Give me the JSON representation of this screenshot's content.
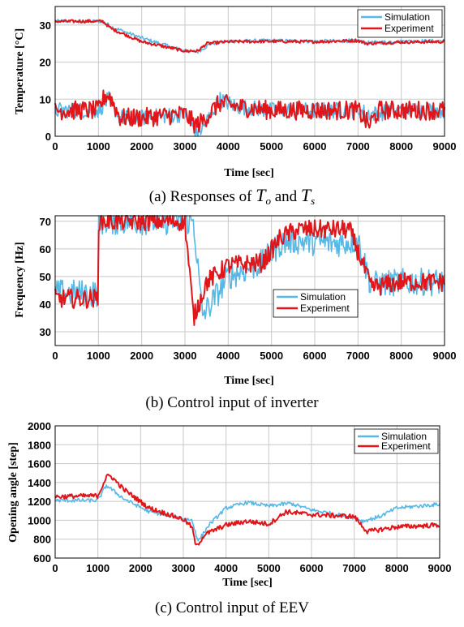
{
  "colors": {
    "simulation": "#55b8e6",
    "experiment": "#e0161b"
  },
  "chart_data": [
    {
      "type": "line",
      "xlabel": "Time  [sec]",
      "ylabel": "Temperature [°C]",
      "caption_prefix": "(a)  Responses  of  ",
      "caption_var1": "T",
      "caption_sub1": "o",
      "caption_mid": "  and  ",
      "caption_var2": "T",
      "caption_sub2": "s",
      "xlim": [
        0,
        9000
      ],
      "ylim": [
        0,
        35
      ],
      "xticks": [
        0,
        1000,
        2000,
        3000,
        4000,
        5000,
        6000,
        7000,
        8000,
        9000
      ],
      "yticks": [
        0,
        10,
        20,
        30
      ],
      "grid": true,
      "legend": "top-right",
      "series": [
        {
          "name": "Simulation",
          "key": "simulation",
          "noise": 0.5,
          "x": [
            0,
            1100,
            1300,
            2000,
            3000,
            3300,
            3600,
            4000,
            5000,
            6000,
            7000,
            7200,
            8000,
            9000
          ],
          "y": [
            31,
            31,
            29.5,
            26.5,
            23,
            22.8,
            25,
            25.6,
            25.8,
            25.6,
            25.8,
            25.2,
            25.6,
            25.7
          ]
        },
        {
          "name": "Experiment",
          "key": "experiment",
          "noise": 0.4,
          "x": [
            0,
            1100,
            1300,
            2000,
            3000,
            3300,
            3500,
            4000,
            5000,
            6000,
            7000,
            7200,
            8000,
            9000
          ],
          "y": [
            31,
            31,
            29,
            25.5,
            23,
            23,
            25,
            25.5,
            25.6,
            25.5,
            25.8,
            25,
            25.4,
            25.5
          ]
        },
        {
          "name": "",
          "key": "simulation",
          "noise": 2.2,
          "x": [
            0,
            1000,
            1150,
            1250,
            1500,
            2000,
            3000,
            3250,
            3400,
            3800,
            4200,
            5000,
            6000,
            7000,
            7300,
            8000,
            9000
          ],
          "y": [
            7,
            7,
            9,
            10,
            5,
            5,
            6,
            1,
            2,
            10,
            8,
            7,
            7,
            7,
            6,
            7,
            7
          ]
        },
        {
          "name": "",
          "key": "experiment",
          "noise": 2.6,
          "x": [
            0,
            1000,
            1150,
            1250,
            1500,
            2000,
            3000,
            3250,
            3400,
            3800,
            4200,
            5000,
            6000,
            7000,
            7250,
            7500,
            8000,
            9000
          ],
          "y": [
            7,
            7,
            11,
            11,
            5,
            5,
            6,
            3,
            4,
            9,
            8,
            7,
            7,
            7,
            3,
            7,
            7,
            7
          ]
        }
      ]
    },
    {
      "type": "line",
      "xlabel": "Time  [sec]",
      "ylabel": "Frequency [Hz]",
      "caption": "(b)  Control  input  of  inverter",
      "xlim": [
        0,
        9000
      ],
      "ylim": [
        25,
        72
      ],
      "xticks": [
        0,
        1000,
        2000,
        3000,
        4000,
        5000,
        6000,
        7000,
        8000,
        9000
      ],
      "yticks": [
        30,
        40,
        50,
        60,
        70
      ],
      "grid": true,
      "legend": "center-right",
      "series": [
        {
          "name": "Simulation",
          "key": "simulation",
          "noise": 5,
          "x": [
            0,
            1000,
            1001,
            3100,
            3200,
            3400,
            3600,
            4000,
            4800,
            5200,
            5500,
            6500,
            7000,
            7300,
            8000,
            9000
          ],
          "y": [
            44,
            44,
            70,
            70,
            70,
            36,
            40,
            50,
            55,
            62,
            63,
            62,
            63,
            47,
            48,
            48
          ]
        },
        {
          "name": "Experiment",
          "key": "experiment",
          "noise": 3.5,
          "x": [
            0,
            1000,
            1001,
            3000,
            3200,
            3500,
            4000,
            4800,
            5200,
            5600,
            6800,
            7100,
            7300,
            8000,
            9000
          ],
          "y": [
            42,
            42,
            70,
            70,
            35,
            48,
            54,
            55,
            64,
            67,
            67,
            55,
            46,
            48,
            48
          ]
        }
      ]
    },
    {
      "type": "line",
      "xlabel": "Time  [sec]",
      "ylabel": "Opening angle [step]",
      "caption": "(c)  Control  input  of  EEV",
      "xlim": [
        0,
        9000
      ],
      "ylim": [
        600,
        2000
      ],
      "xticks": [
        0,
        1000,
        2000,
        3000,
        4000,
        5000,
        6000,
        7000,
        8000,
        9000
      ],
      "yticks": [
        600,
        800,
        1000,
        1200,
        1400,
        1600,
        1800,
        2000
      ],
      "grid": true,
      "legend": "top-right",
      "series": [
        {
          "name": "Simulation",
          "key": "simulation",
          "noise": 20,
          "x": [
            0,
            1000,
            1200,
            1600,
            2200,
            3000,
            3200,
            3350,
            3600,
            4000,
            4500,
            5000,
            5500,
            6000,
            7000,
            7200,
            7600,
            8000,
            9000
          ],
          "y": [
            1210,
            1210,
            1370,
            1230,
            1090,
            1020,
            1000,
            780,
            950,
            1130,
            1190,
            1150,
            1180,
            1110,
            1030,
            990,
            1040,
            1130,
            1170
          ]
        },
        {
          "name": "Experiment",
          "key": "experiment",
          "noise": 25,
          "x": [
            0,
            1000,
            1200,
            1300,
            1600,
            2200,
            3000,
            3200,
            3300,
            3500,
            4000,
            4500,
            5000,
            5400,
            6000,
            7000,
            7300,
            8000,
            9000
          ],
          "y": [
            1250,
            1260,
            1460,
            1470,
            1330,
            1130,
            1010,
            930,
            720,
            850,
            950,
            990,
            960,
            1090,
            1060,
            1040,
            880,
            930,
            950
          ]
        }
      ]
    }
  ]
}
